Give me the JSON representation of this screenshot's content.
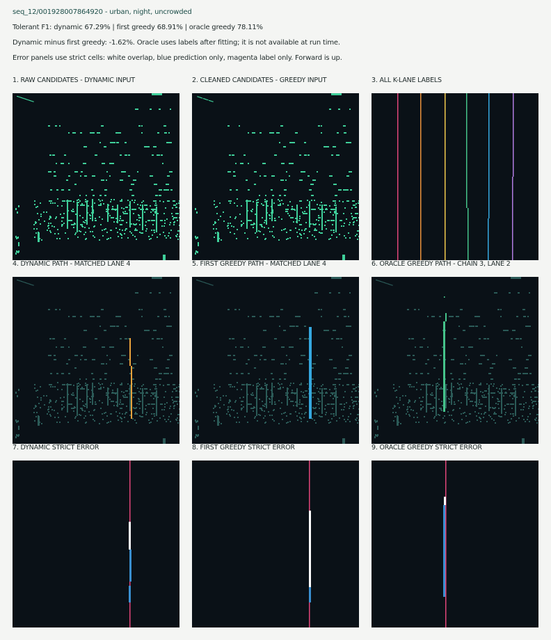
{
  "header": {
    "line1": "seq_12/001928007864920 - urban, night, uncrowded",
    "line2": "Tolerant F1: dynamic 67.29% | first greedy 68.91% | oracle greedy 78.11%",
    "line3": "Dynamic minus first greedy: -1.62%. Oracle uses labels after fitting; it is not available at run time.",
    "line4": "Error panels use strict cells: white overlap, blue prediction only, magenta label only. Forward is up."
  },
  "panels": [
    {
      "title": "1. RAW CANDIDATES - DYNAMIC INPUT"
    },
    {
      "title": "2. CLEANED CANDIDATES - GREEDY INPUT"
    },
    {
      "title": "3. ALL K-LANE LABELS"
    },
    {
      "title": "4. DYNAMIC PATH - MATCHED LANE 4"
    },
    {
      "title": "5. FIRST GREEDY PATH - MATCHED LANE 4"
    },
    {
      "title": "6. ORACLE GREEDY PATH - CHAIN 3, LANE 2"
    },
    {
      "title": "7. DYNAMIC STRICT ERROR"
    },
    {
      "title": "8. FIRST GREEDY STRICT ERROR"
    },
    {
      "title": "9. ORACLE GREEDY STRICT ERROR"
    }
  ],
  "colors": {
    "background": "#0a1117",
    "candidate": "#3fcf9a",
    "candidate_dim": "#2b5a57",
    "path_dynamic": "#e9a33c",
    "path_first_greedy": "#35a8df",
    "path_oracle": "#45c38a",
    "overlap": "#ffffff",
    "prediction_only": "#3a8fd0",
    "label_only": "#e0457a",
    "lanes": [
      "#e0457a",
      "#e9913c",
      "#f2c94c",
      "#45c38a",
      "#35a8df",
      "#b07ce0"
    ]
  }
}
